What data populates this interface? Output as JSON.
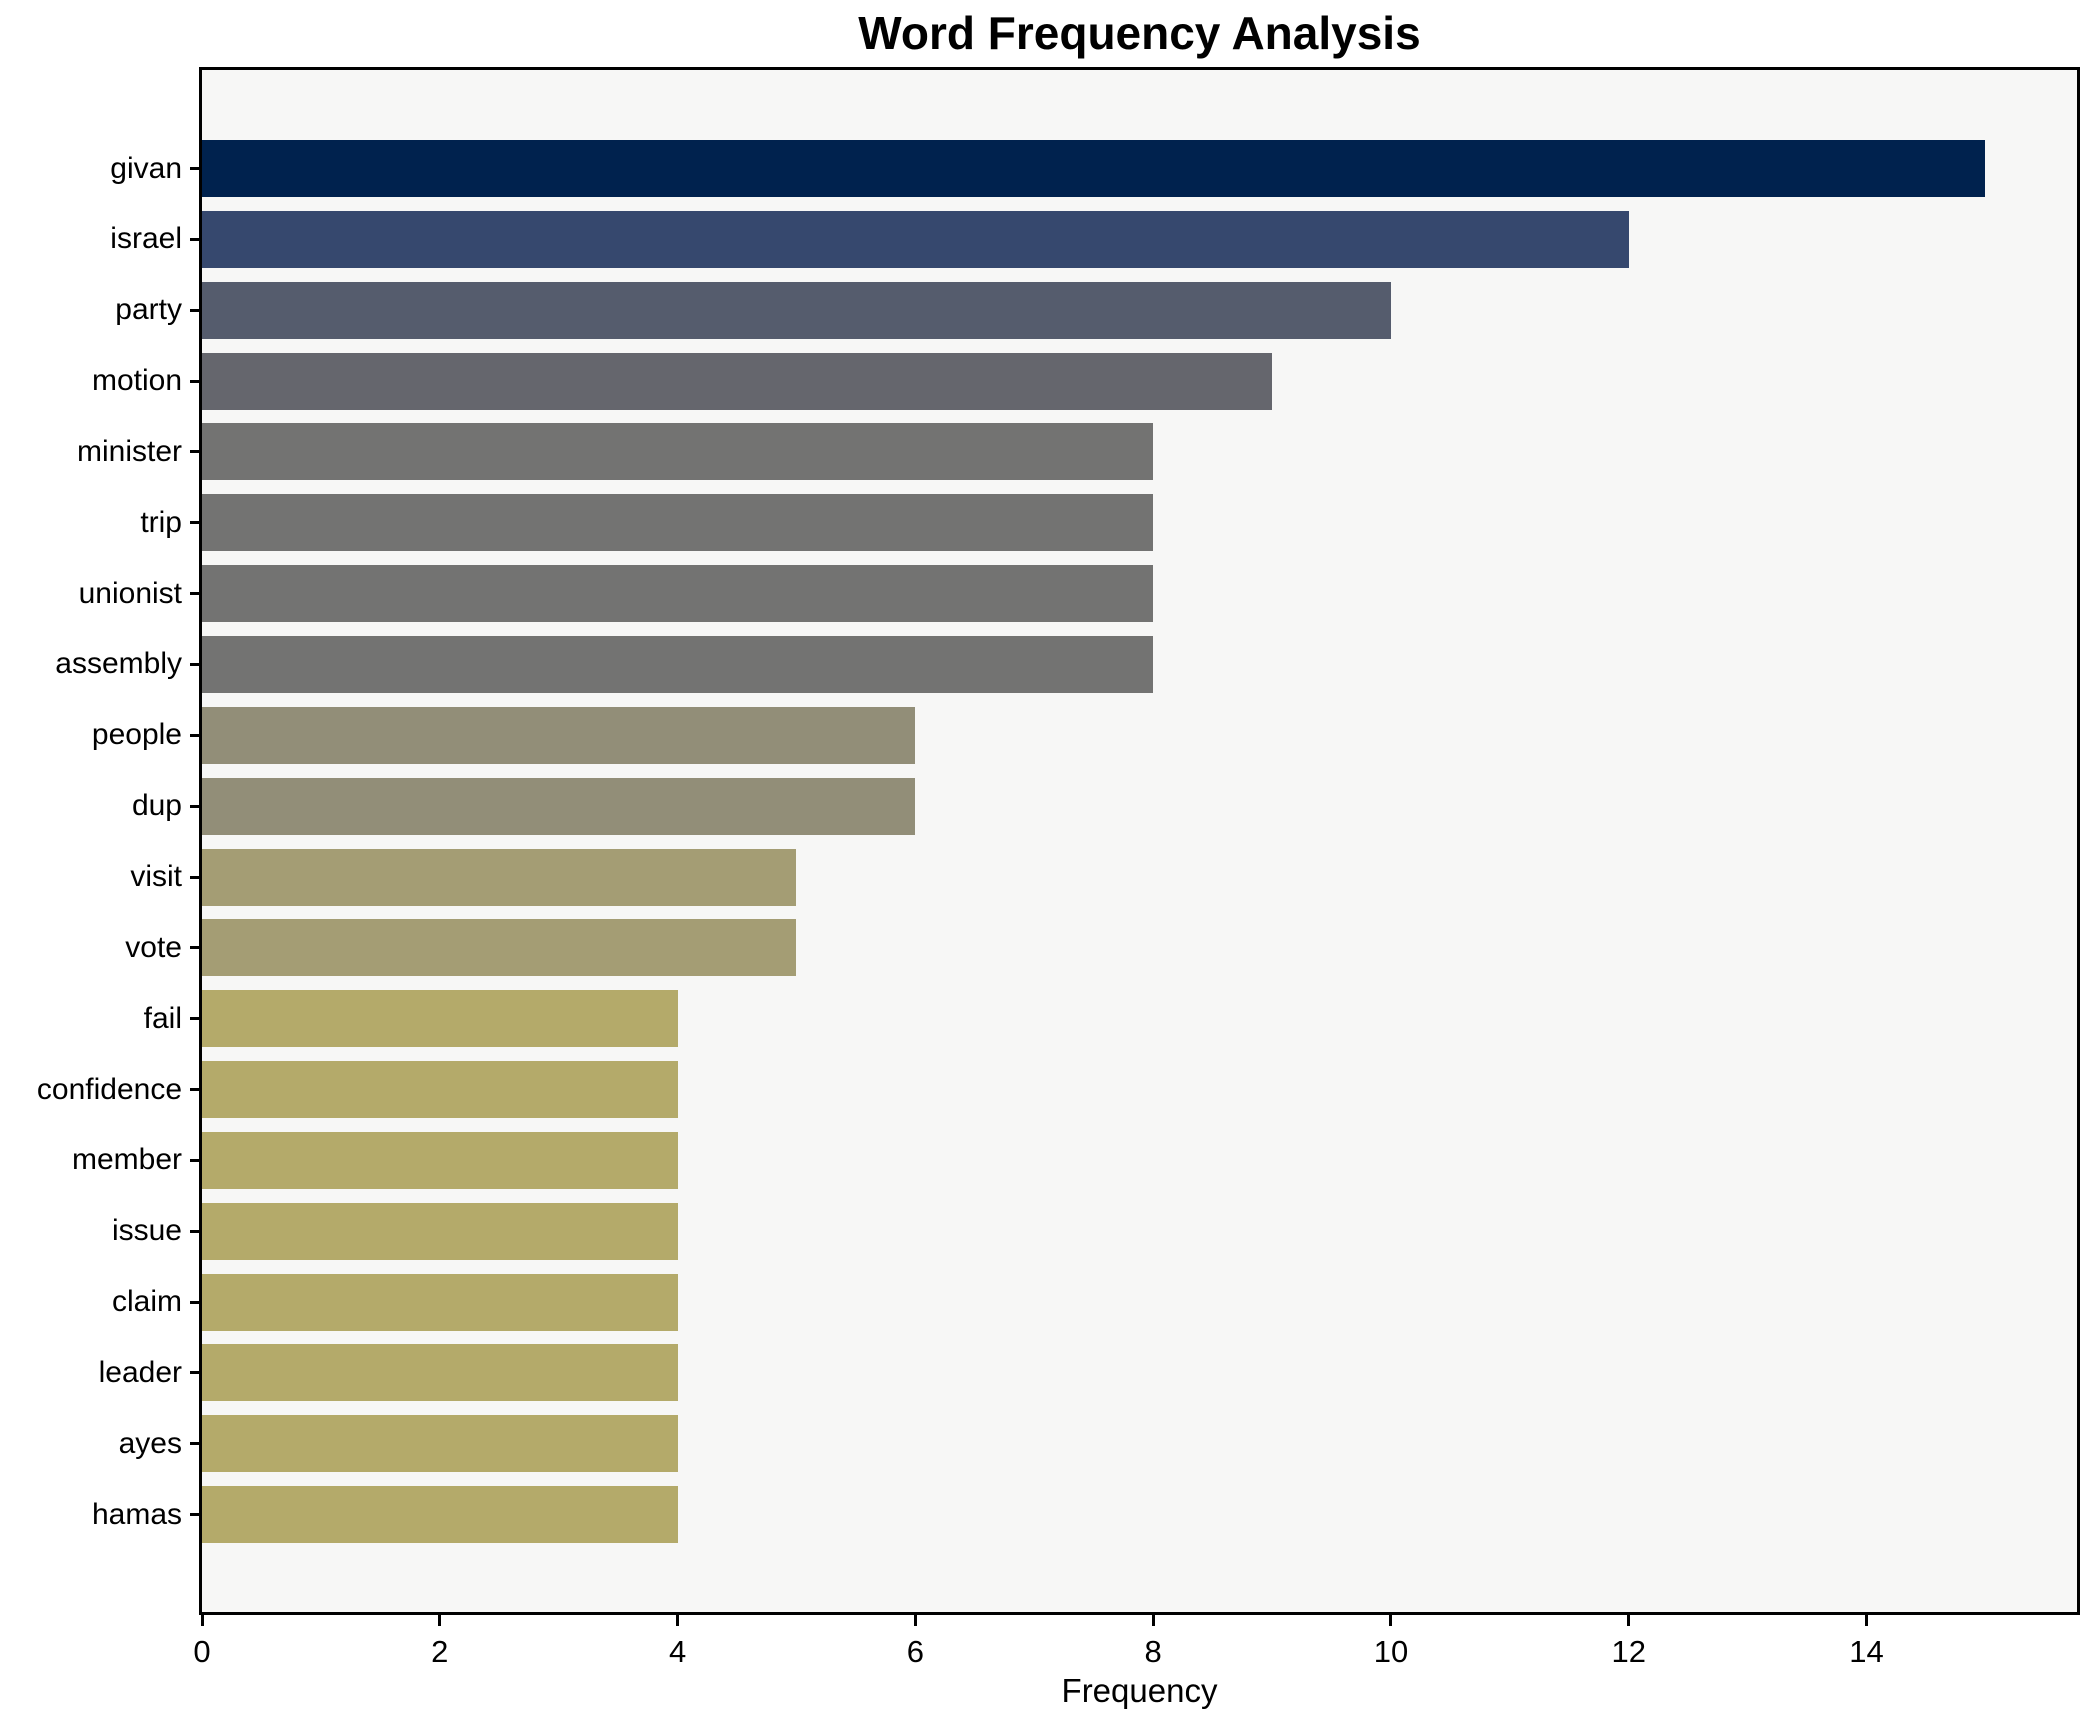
{
  "title": "Word Frequency Analysis",
  "xlabel": "Frequency",
  "colors": {
    "plot_background": "#f7f7f6",
    "figure_background": "#ffffff",
    "spine": "#000000",
    "text": "#000000"
  },
  "chart_data": {
    "type": "bar",
    "orientation": "horizontal",
    "title": "Word Frequency Analysis",
    "xlabel": "Frequency",
    "ylabel": "",
    "grid": false,
    "legend_position": "none",
    "xlim": [
      0,
      15.77
    ],
    "xticks": [
      0,
      2,
      4,
      6,
      8,
      10,
      12,
      14
    ],
    "categories": [
      "givan",
      "israel",
      "party",
      "motion",
      "minister",
      "trip",
      "unionist",
      "assembly",
      "people",
      "dup",
      "visit",
      "vote",
      "fail",
      "confidence",
      "member",
      "issue",
      "claim",
      "leader",
      "ayes",
      "hamas"
    ],
    "values": [
      15,
      12,
      10,
      9,
      8,
      8,
      8,
      8,
      6,
      6,
      5,
      5,
      4,
      4,
      4,
      4,
      4,
      4,
      4,
      4
    ],
    "bar_colors": [
      "#00224e",
      "#36486e",
      "#555c6d",
      "#65666d",
      "#737372",
      "#737372",
      "#737372",
      "#737372",
      "#928e78",
      "#928e78",
      "#a49d74",
      "#a49d74",
      "#b4aa6a",
      "#b4aa6a",
      "#b4aa6a",
      "#b4aa6a",
      "#b4aa6a",
      "#b4aa6a",
      "#b4aa6a",
      "#b4aa6a"
    ]
  }
}
